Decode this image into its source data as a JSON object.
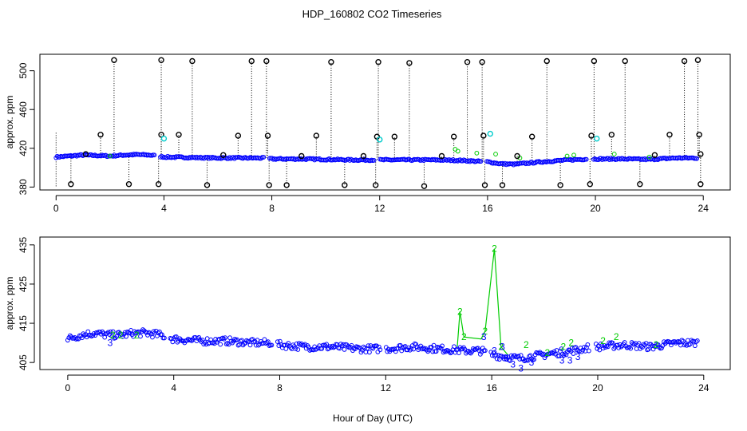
{
  "title": "HDP_160802  CO2 Timeseries",
  "xlabel": "Hour of Day (UTC)",
  "colors": {
    "series1": "#000000",
    "series2": "#00cc00",
    "series3": "#0000ff",
    "outlier": "#00cccc"
  },
  "chart_data": [
    {
      "type": "scatter",
      "ylabel": "approx. ppm",
      "xlim": [
        -0.6,
        25.0
      ],
      "ylim": [
        377,
        517
      ],
      "x_ticks": [
        "0",
        "4",
        "8",
        "12",
        "16",
        "20",
        "24"
      ],
      "x_tick_values": [
        0,
        4,
        8,
        12,
        16,
        20,
        24
      ],
      "y_ticks": [
        "380",
        "420",
        "460",
        "500"
      ],
      "y_tick_values": [
        380,
        420,
        460,
        500
      ],
      "baseline": [
        [
          0.0,
          411
        ],
        [
          0.5,
          412
        ],
        [
          1.0,
          413
        ],
        [
          1.5,
          412.5
        ],
        [
          2.0,
          412
        ],
        [
          2.5,
          413
        ],
        [
          3.0,
          413.5
        ],
        [
          3.5,
          413
        ],
        [
          4.0,
          411
        ],
        [
          5.0,
          410.5
        ],
        [
          6.0,
          410
        ],
        [
          7.0,
          410
        ],
        [
          7.8,
          410
        ],
        [
          8.0,
          409
        ],
        [
          9.0,
          409
        ],
        [
          10.0,
          408.5
        ],
        [
          11.0,
          408
        ],
        [
          12.0,
          408
        ],
        [
          13.0,
          408
        ],
        [
          14.0,
          408
        ],
        [
          15.0,
          407.5
        ],
        [
          16.0,
          406
        ],
        [
          16.5,
          404
        ],
        [
          17.0,
          403.5
        ],
        [
          18.0,
          406
        ],
        [
          19.0,
          408
        ],
        [
          19.8,
          409
        ],
        [
          20.0,
          409
        ],
        [
          21.0,
          409
        ],
        [
          22.0,
          408.5
        ],
        [
          23.0,
          410
        ],
        [
          23.8,
          410
        ]
      ],
      "outliers_high": [
        {
          "x": 2.15,
          "y": 511
        },
        {
          "x": 3.9,
          "y": 511
        },
        {
          "x": 5.05,
          "y": 510
        },
        {
          "x": 7.25,
          "y": 510
        },
        {
          "x": 7.8,
          "y": 510
        },
        {
          "x": 10.2,
          "y": 509
        },
        {
          "x": 11.95,
          "y": 509
        },
        {
          "x": 13.1,
          "y": 508
        },
        {
          "x": 15.25,
          "y": 509
        },
        {
          "x": 15.8,
          "y": 509
        },
        {
          "x": 18.2,
          "y": 510
        },
        {
          "x": 19.95,
          "y": 510
        },
        {
          "x": 21.1,
          "y": 510
        },
        {
          "x": 23.3,
          "y": 510
        },
        {
          "x": 23.8,
          "y": 511
        }
      ],
      "outliers_low": [
        {
          "x": 0.55,
          "y": 383
        },
        {
          "x": 2.7,
          "y": 383
        },
        {
          "x": 3.8,
          "y": 383
        },
        {
          "x": 5.6,
          "y": 382
        },
        {
          "x": 7.9,
          "y": 382
        },
        {
          "x": 8.55,
          "y": 382
        },
        {
          "x": 10.7,
          "y": 382
        },
        {
          "x": 11.85,
          "y": 382
        },
        {
          "x": 13.65,
          "y": 381
        },
        {
          "x": 15.9,
          "y": 382
        },
        {
          "x": 16.55,
          "y": 382
        },
        {
          "x": 18.7,
          "y": 382
        },
        {
          "x": 19.8,
          "y": 383
        },
        {
          "x": 21.65,
          "y": 383
        },
        {
          "x": 23.9,
          "y": 383
        }
      ],
      "outliers_mid": [
        {
          "x": 1.65,
          "y": 434
        },
        {
          "x": 3.9,
          "y": 434
        },
        {
          "x": 4.55,
          "y": 434
        },
        {
          "x": 6.75,
          "y": 433
        },
        {
          "x": 7.85,
          "y": 433
        },
        {
          "x": 9.65,
          "y": 433
        },
        {
          "x": 11.9,
          "y": 432
        },
        {
          "x": 12.55,
          "y": 432
        },
        {
          "x": 14.75,
          "y": 432
        },
        {
          "x": 15.85,
          "y": 433
        },
        {
          "x": 17.65,
          "y": 432
        },
        {
          "x": 19.85,
          "y": 433
        },
        {
          "x": 20.6,
          "y": 434
        },
        {
          "x": 22.75,
          "y": 434
        },
        {
          "x": 23.85,
          "y": 434
        },
        {
          "x": 1.1,
          "y": 414
        },
        {
          "x": 6.2,
          "y": 413
        },
        {
          "x": 9.1,
          "y": 412
        },
        {
          "x": 11.4,
          "y": 412
        },
        {
          "x": 14.3,
          "y": 412
        },
        {
          "x": 17.1,
          "y": 412
        },
        {
          "x": 22.2,
          "y": 413
        },
        {
          "x": 23.9,
          "y": 414
        }
      ],
      "cyan_points": [
        {
          "x": 4.0,
          "y": 430
        },
        {
          "x": 12.0,
          "y": 429
        },
        {
          "x": 16.1,
          "y": 435
        },
        {
          "x": 20.05,
          "y": 430
        }
      ]
    },
    {
      "type": "scatter",
      "ylabel": "approx. ppm",
      "xlim": [
        -1.05,
        25.0
      ],
      "ylim": [
        403.2,
        437.0
      ],
      "x_ticks": [
        "0",
        "4",
        "8",
        "12",
        "16",
        "20",
        "24"
      ],
      "x_tick_values": [
        0,
        4,
        8,
        12,
        16,
        20,
        24
      ],
      "y_ticks": [
        "405",
        "415",
        "425",
        "435"
      ],
      "y_tick_values": [
        405,
        415,
        425,
        435
      ],
      "baseline": [
        [
          0.0,
          411
        ],
        [
          0.5,
          412
        ],
        [
          1.0,
          412.5
        ],
        [
          1.5,
          412
        ],
        [
          2.0,
          412
        ],
        [
          2.5,
          412.5
        ],
        [
          3.0,
          412.5
        ],
        [
          3.5,
          412
        ],
        [
          4.0,
          411
        ],
        [
          5.0,
          410.5
        ],
        [
          6.0,
          410.5
        ],
        [
          7.0,
          410
        ],
        [
          7.8,
          410
        ],
        [
          8.0,
          409.5
        ],
        [
          9.0,
          409
        ],
        [
          10.0,
          409
        ],
        [
          11.0,
          408.5
        ],
        [
          12.0,
          408.5
        ],
        [
          13.0,
          409
        ],
        [
          14.0,
          408.5
        ],
        [
          15.0,
          408
        ],
        [
          15.6,
          408
        ],
        [
          16.0,
          407
        ],
        [
          16.5,
          406.5
        ],
        [
          17.0,
          406
        ],
        [
          17.5,
          406.5
        ],
        [
          18.0,
          407
        ],
        [
          19.0,
          408
        ],
        [
          19.8,
          409
        ],
        [
          20.0,
          409
        ],
        [
          21.0,
          409.5
        ],
        [
          22.0,
          409
        ],
        [
          23.0,
          410
        ],
        [
          23.8,
          410
        ]
      ],
      "series2_labels": [
        {
          "x": 1.7,
          "y": 412
        },
        {
          "x": 2.0,
          "y": 412
        },
        {
          "x": 2.6,
          "y": 412
        },
        {
          "x": 14.8,
          "y": 418
        },
        {
          "x": 14.95,
          "y": 411.5
        },
        {
          "x": 15.75,
          "y": 413
        },
        {
          "x": 16.1,
          "y": 434
        },
        {
          "x": 16.35,
          "y": 409
        },
        {
          "x": 17.3,
          "y": 409.5
        },
        {
          "x": 18.1,
          "y": 407.5
        },
        {
          "x": 18.7,
          "y": 409
        },
        {
          "x": 19.0,
          "y": 410
        },
        {
          "x": 20.2,
          "y": 410.5
        },
        {
          "x": 20.7,
          "y": 411.5
        },
        {
          "x": 22.2,
          "y": 409.5
        }
      ],
      "series3_labels": [
        {
          "x": 1.6,
          "y": 410
        },
        {
          "x": 15.7,
          "y": 411.5
        },
        {
          "x": 16.1,
          "y": 408
        },
        {
          "x": 16.55,
          "y": 406
        },
        {
          "x": 16.8,
          "y": 404.5
        },
        {
          "x": 17.1,
          "y": 403.5
        },
        {
          "x": 17.5,
          "y": 405
        },
        {
          "x": 18.65,
          "y": 405.5
        },
        {
          "x": 18.95,
          "y": 405.5
        },
        {
          "x": 19.25,
          "y": 406.5
        },
        {
          "x": 16.4,
          "y": 409
        }
      ]
    }
  ]
}
